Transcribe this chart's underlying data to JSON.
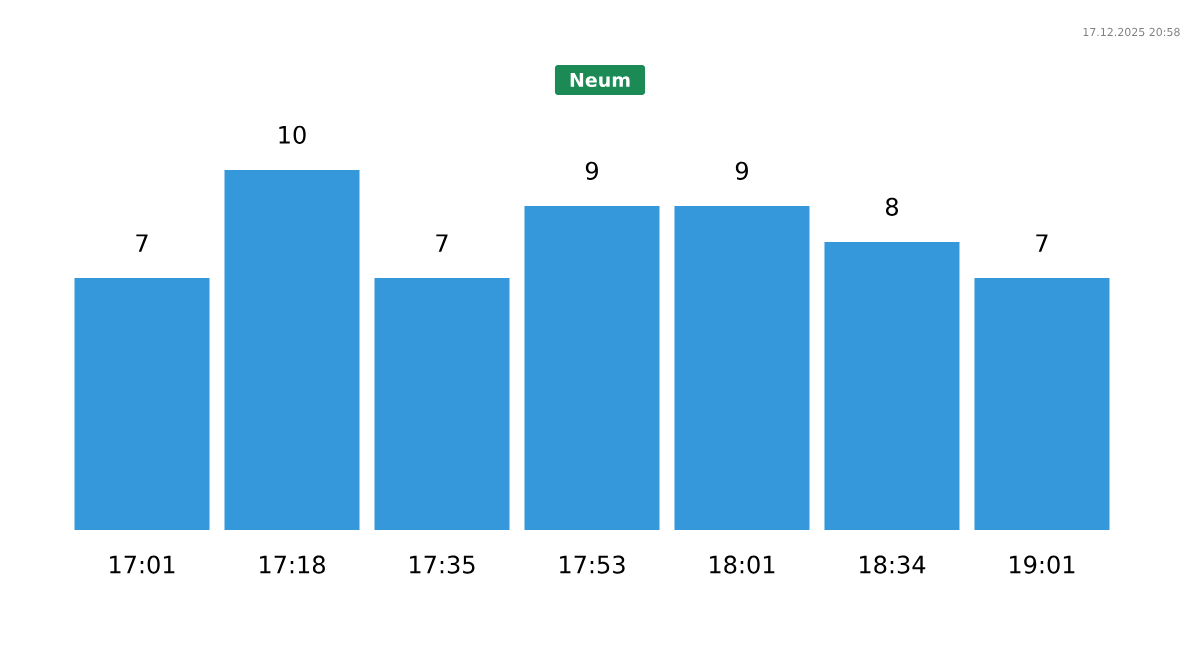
{
  "chart_data": {
    "type": "bar",
    "title": "Neum",
    "categories": [
      "17:01",
      "17:18",
      "17:35",
      "17:53",
      "18:01",
      "18:34",
      "19:01"
    ],
    "values": [
      7,
      10,
      7,
      9,
      9,
      8,
      7
    ],
    "color": "#3498db",
    "data_labels": true,
    "annotations": [
      "17.12.2025 20:58"
    ]
  }
}
